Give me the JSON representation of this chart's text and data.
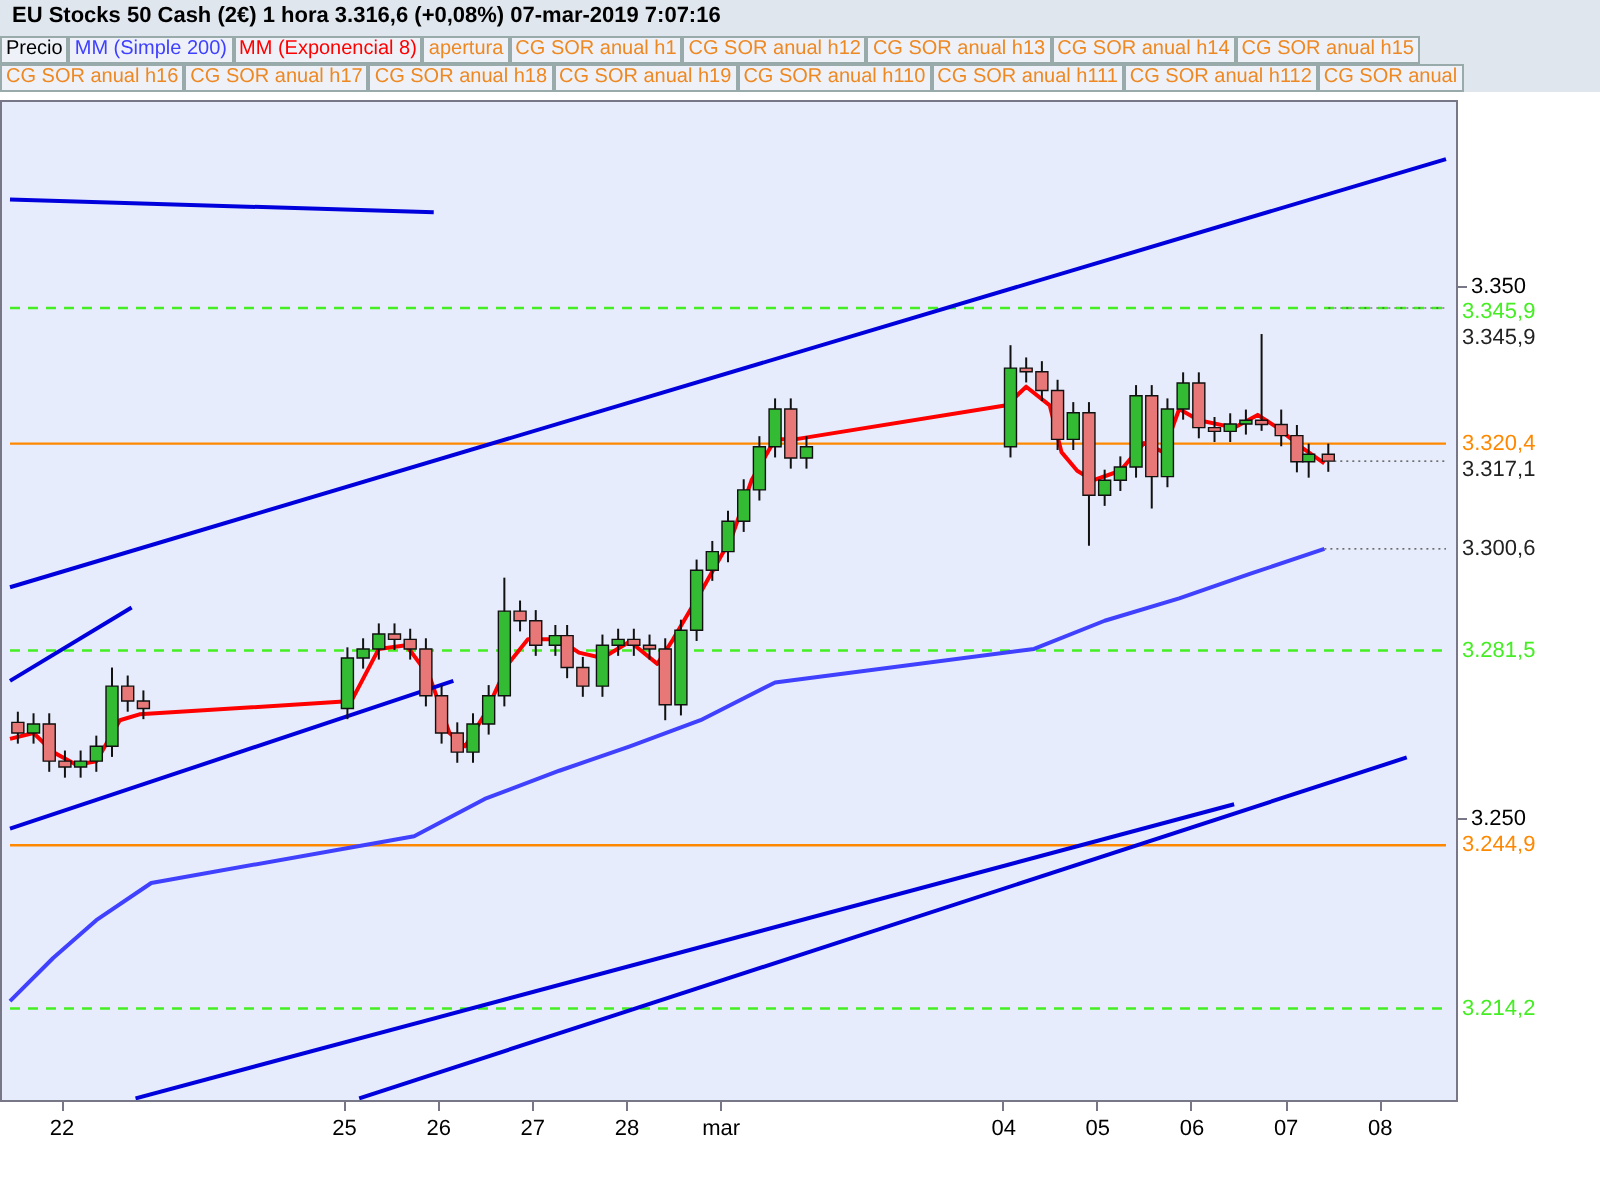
{
  "chart_data": {
    "type": "candlestick",
    "title": "EU Stocks 50 Cash (2€)   1 hora   3.316,6 (+0,08%)   07-mar-2019 7:07:16",
    "legend": "top left",
    "grid": false,
    "marker": "none",
    "xlim": [
      "2019-02-21T11:00",
      "2019-03-08T17:00"
    ],
    "xticks": [
      {
        "value": "2019-02-22",
        "label": "22"
      },
      {
        "value": "2019-02-25",
        "label": "25"
      },
      {
        "value": "2019-02-26",
        "label": "26"
      },
      {
        "value": "2019-02-27",
        "label": "27"
      },
      {
        "value": "2019-02-28",
        "label": "28"
      },
      {
        "value": "2019-03-01",
        "label": "mar"
      },
      {
        "value": "2019-03-04",
        "label": "04"
      },
      {
        "value": "2019-03-05",
        "label": "05"
      },
      {
        "value": "2019-03-06",
        "label": "06"
      },
      {
        "value": "2019-03-07",
        "label": "07"
      },
      {
        "value": "2019-03-08",
        "label": "08"
      }
    ],
    "ylim": [
      3197,
      3385
    ],
    "yticks": [
      {
        "value": 3350,
        "label": "3.350"
      },
      {
        "value": 3250,
        "label": "3.250"
      }
    ],
    "series": [
      {
        "name": "Precio",
        "x": [
          "2019-02-21T13:00",
          "2019-02-21T17:00",
          "2019-02-21T21:00",
          "2019-02-22T01:00",
          "2019-02-22T05:00",
          "2019-02-22T09:00",
          "2019-02-22T13:00",
          "2019-02-22T17:00",
          "2019-02-22T21:00",
          "2019-02-25T01:00",
          "2019-02-25T05:00",
          "2019-02-25T09:00",
          "2019-02-25T13:00",
          "2019-02-25T17:00",
          "2019-02-25T21:00",
          "2019-02-26T01:00",
          "2019-02-26T05:00",
          "2019-02-26T09:00",
          "2019-02-26T13:00",
          "2019-02-26T17:00",
          "2019-02-26T21:00",
          "2019-02-27T01:00",
          "2019-02-27T06:00",
          "2019-02-27T09:00",
          "2019-02-27T13:00",
          "2019-02-27T18:00",
          "2019-02-27T22:00",
          "2019-02-28T02:00",
          "2019-02-28T06:00",
          "2019-02-28T10:00",
          "2019-02-28T14:00",
          "2019-02-28T18:00",
          "2019-02-28T22:00",
          "2019-03-01T02:00",
          "2019-03-01T06:00",
          "2019-03-01T10:00",
          "2019-03-01T14:00",
          "2019-03-01T18:00",
          "2019-03-01T22:00",
          "2019-03-04T02:00",
          "2019-03-04T06:00",
          "2019-03-04T10:00",
          "2019-03-04T14:00",
          "2019-03-04T18:00",
          "2019-03-04T22:00",
          "2019-03-05T02:00",
          "2019-03-05T06:00",
          "2019-03-05T10:00",
          "2019-03-05T14:00",
          "2019-03-05T18:00",
          "2019-03-05T22:00",
          "2019-03-06T02:00",
          "2019-03-06T06:00",
          "2019-03-06T10:00",
          "2019-03-06T14:00",
          "2019-03-06T18:00",
          "2019-03-06T23:00",
          "2019-03-07T03:00",
          "2019-03-07T06:00",
          "2019-03-07T11:00"
        ],
        "ohlc": [
          [
            3268.0,
            3270.0,
            3264.0,
            3266.0
          ],
          [
            3266.0,
            3269.7,
            3264.0,
            3267.7
          ],
          [
            3267.7,
            3269.7,
            3258.7,
            3260.7
          ],
          [
            3260.7,
            3262.7,
            3257.6,
            3259.6
          ],
          [
            3259.6,
            3262.7,
            3257.6,
            3260.7
          ],
          [
            3260.7,
            3265.5,
            3258.7,
            3263.5
          ],
          [
            3263.5,
            3278.3,
            3261.5,
            3274.8
          ],
          [
            3274.8,
            3276.8,
            3270.0,
            3272.0
          ],
          [
            3272.0,
            3274.0,
            3268.6,
            3270.6
          ],
          [
            3270.6,
            3282.1,
            3268.6,
            3280.1
          ],
          [
            3280.1,
            3283.8,
            3278.1,
            3281.8
          ],
          [
            3281.8,
            3286.6,
            3279.8,
            3284.6
          ],
          [
            3284.6,
            3286.6,
            3281.6,
            3283.6
          ],
          [
            3283.6,
            3285.6,
            3279.8,
            3281.8
          ],
          [
            3281.8,
            3283.8,
            3271.0,
            3273.0
          ],
          [
            3273.0,
            3275.0,
            3264.0,
            3266.0
          ],
          [
            3266.0,
            3268.0,
            3260.4,
            3262.4
          ],
          [
            3262.4,
            3269.7,
            3260.4,
            3267.7
          ],
          [
            3267.7,
            3275.0,
            3265.7,
            3273.0
          ],
          [
            3273.0,
            3295.2,
            3271.0,
            3288.9
          ],
          [
            3288.9,
            3290.9,
            3285.1,
            3287.1
          ],
          [
            3287.1,
            3289.1,
            3280.5,
            3282.5
          ],
          [
            3282.5,
            3286.3,
            3280.5,
            3284.3
          ],
          [
            3284.3,
            3286.3,
            3276.3,
            3278.3
          ],
          [
            3278.3,
            3280.3,
            3272.8,
            3274.8
          ],
          [
            3274.8,
            3284.5,
            3272.8,
            3282.5
          ],
          [
            3282.5,
            3285.6,
            3280.5,
            3283.6
          ],
          [
            3283.6,
            3285.6,
            3280.5,
            3282.5
          ],
          [
            3282.5,
            3284.5,
            3279.8,
            3281.8
          ],
          [
            3281.8,
            3283.8,
            3268.4,
            3271.3
          ],
          [
            3271.3,
            3287.3,
            3269.3,
            3285.3
          ],
          [
            3285.3,
            3298.6,
            3283.3,
            3296.6
          ],
          [
            3296.6,
            3302.1,
            3294.6,
            3300.1
          ],
          [
            3300.1,
            3307.8,
            3298.1,
            3305.8
          ],
          [
            3305.8,
            3313.7,
            3303.8,
            3311.7
          ],
          [
            3311.7,
            3321.8,
            3309.7,
            3319.8
          ],
          [
            3319.8,
            3328.9,
            3317.8,
            3326.9
          ],
          [
            3326.9,
            3328.9,
            3315.7,
            3317.7
          ],
          [
            3317.7,
            3321.8,
            3315.7,
            3319.8
          ],
          [
            3319.8,
            3338.9,
            3317.8,
            3334.6
          ],
          [
            3334.6,
            3336.6,
            3331.9,
            3333.9
          ],
          [
            3333.9,
            3335.9,
            3328.4,
            3330.4
          ],
          [
            3330.4,
            3332.4,
            3319.2,
            3321.2
          ],
          [
            3321.2,
            3328.2,
            3319.2,
            3326.2
          ],
          [
            3326.2,
            3328.2,
            3301.2,
            3310.7
          ],
          [
            3310.7,
            3315.5,
            3308.7,
            3313.5
          ],
          [
            3313.5,
            3318.0,
            3311.5,
            3316.0
          ],
          [
            3316.0,
            3331.4,
            3314.0,
            3329.4
          ],
          [
            3329.4,
            3331.4,
            3308.2,
            3314.2
          ],
          [
            3314.2,
            3328.9,
            3312.2,
            3326.9
          ],
          [
            3326.9,
            3333.8,
            3324.9,
            3331.8
          ],
          [
            3331.8,
            3333.8,
            3321.4,
            3323.4
          ],
          [
            3323.4,
            3325.4,
            3320.7,
            3322.7
          ],
          [
            3322.7,
            3326.1,
            3320.7,
            3324.1
          ],
          [
            3324.1,
            3326.8,
            3322.1,
            3324.8
          ],
          [
            3324.8,
            3341.0,
            3322.8,
            3324.0
          ],
          [
            3324.0,
            3326.8,
            3319.9,
            3321.9
          ],
          [
            3321.9,
            3323.9,
            3315.0,
            3317.0
          ],
          [
            3317.0,
            3320.4,
            3314.0,
            3318.4
          ],
          [
            3318.4,
            3320.4,
            3315.1,
            3317.1
          ]
        ],
        "colors": [
          "#e87878",
          "#33bb33",
          "#e87878",
          "#e87878",
          "#33bb33",
          "#33bb33",
          "#33bb33",
          "#e87878",
          "#e87878",
          "#33bb33",
          "#33bb33",
          "#33bb33",
          "#e87878",
          "#e87878",
          "#e87878",
          "#e87878",
          "#e87878",
          "#33bb33",
          "#33bb33",
          "#33bb33",
          "#e87878",
          "#e87878",
          "#33bb33",
          "#e87878",
          "#e87878",
          "#33bb33",
          "#33bb33",
          "#e87878",
          "#e87878",
          "#e87878",
          "#33bb33",
          "#33bb33",
          "#33bb33",
          "#33bb33",
          "#33bb33",
          "#33bb33",
          "#33bb33",
          "#e87878",
          "#33bb33",
          "#33bb33",
          "#e87878",
          "#e87878",
          "#e87878",
          "#33bb33",
          "#e87878",
          "#33bb33",
          "#33bb33",
          "#33bb33",
          "#e87878",
          "#33bb33",
          "#33bb33",
          "#e87878",
          "#e87878",
          "#33bb33",
          "#33bb33",
          "#e87878",
          "#e87878",
          "#e87878",
          "#33bb33",
          "#e87878"
        ]
      },
      {
        "name": "MM (Simple 200)",
        "type": "line",
        "color": "#4040ff",
        "x": [
          "2019-02-21T11:00",
          "2019-02-21T22:00",
          "2019-02-22T09:00",
          "2019-02-22T23:00",
          "2019-02-25T18:00",
          "2019-02-26T12:00",
          "2019-02-27T07:00",
          "2019-02-28T01:00",
          "2019-02-28T19:00",
          "2019-03-01T14:00",
          "2019-03-04T08:00",
          "2019-03-05T02:00",
          "2019-03-05T21:00",
          "2019-03-06T15:00",
          "2019-03-07T10:00"
        ],
        "values": [
          3215.6,
          3223.7,
          3230.8,
          3237.8,
          3246.6,
          3253.6,
          3258.9,
          3263.5,
          3268.4,
          3275.5,
          3281.8,
          3287.1,
          3291.3,
          3295.9,
          3300.6
        ]
      },
      {
        "name": "MM (Exponencial 8)",
        "type": "line",
        "color": "#ff0000",
        "x": [
          "2019-02-21T11:00",
          "2019-02-21T17:00",
          "2019-02-21T22:00",
          "2019-02-22T04:00",
          "2019-02-22T09:00",
          "2019-02-22T15:00",
          "2019-02-22T20:00",
          "2019-02-25T02:00",
          "2019-02-25T09:00",
          "2019-02-25T16:00",
          "2019-02-25T22:00",
          "2019-02-26T03:00",
          "2019-02-26T07:00",
          "2019-02-26T12:00",
          "2019-02-26T18:00",
          "2019-02-26T23:00",
          "2019-02-27T07:00",
          "2019-02-27T12:00",
          "2019-02-27T18:00",
          "2019-02-28T01:00",
          "2019-02-28T08:00",
          "2019-02-28T12:00",
          "2019-02-28T19:00",
          "2019-03-01T03:00",
          "2019-03-01T08:00",
          "2019-03-01T14:00",
          "2019-03-01T19:00",
          "2019-03-04T01:00",
          "2019-03-04T06:00",
          "2019-03-04T12:00",
          "2019-03-04T15:00",
          "2019-03-04T19:00",
          "2019-03-04T23:00",
          "2019-03-05T06:00",
          "2019-03-05T12:00",
          "2019-03-05T17:00",
          "2019-03-05T21:00",
          "2019-03-06T02:00",
          "2019-03-06T11:00",
          "2019-03-06T17:00",
          "2019-03-06T22:00",
          "2019-03-07T04:00",
          "2019-03-07T10:00"
        ],
        "values": [
          3264.9,
          3266.0,
          3262.4,
          3260.0,
          3260.7,
          3268.4,
          3269.5,
          3272.0,
          3281.8,
          3282.5,
          3276.5,
          3266.0,
          3263.5,
          3269.5,
          3279.0,
          3283.6,
          3283.6,
          3281.1,
          3280.1,
          3283.2,
          3279.0,
          3283.6,
          3292.4,
          3302.9,
          3313.5,
          3321.2,
          3321.2,
          3327.6,
          3331.1,
          3327.6,
          3318.8,
          3315.3,
          3313.5,
          3315.3,
          3320.5,
          3318.8,
          3326.9,
          3324.8,
          3323.4,
          3325.8,
          3323.4,
          3319.8,
          3316.7
        ]
      },
      {
        "type": "line",
        "color": "#0000dd",
        "x": [
          "2019-02-21T11:00",
          "2019-02-25T23:00"
        ],
        "values": [
          3366.3,
          3363.9
        ]
      },
      {
        "type": "line",
        "color": "#0000dd",
        "x": [
          "2019-02-21T11:00",
          "2019-03-08T17:00"
        ],
        "values": [
          3293.4,
          3373.9
        ]
      },
      {
        "type": "line",
        "color": "#0000dd",
        "x": [
          "2019-02-21T11:00",
          "2019-02-22T18:00"
        ],
        "values": [
          3275.8,
          3289.6
        ]
      },
      {
        "type": "line",
        "color": "#0000dd",
        "x": [
          "2019-02-21T11:00",
          "2019-02-26T04:00"
        ],
        "values": [
          3248.0,
          3275.8
        ]
      },
      {
        "type": "line",
        "color": "#0000dd",
        "x": [
          "2019-02-22T19:00",
          "2019-03-06T11:00"
        ],
        "values": [
          3197.3,
          3252.6
        ]
      },
      {
        "type": "line",
        "color": "#0000dd",
        "x": [
          "2019-02-25T04:00",
          "2019-03-08T07:00"
        ],
        "values": [
          3197.3,
          3261.4
        ]
      }
    ],
    "ref_lines": [
      {
        "axis": "y",
        "value": 3345.9,
        "label": "3.345,9",
        "color": "#44ee22",
        "line_style": "dashed"
      },
      {
        "axis": "y",
        "value": 3320.4,
        "label": "3.320,4",
        "color": "#ff8800",
        "line_style": "solid"
      },
      {
        "axis": "y",
        "value": 3281.5,
        "label": "3.281,5",
        "color": "#44ee22",
        "line_style": "dashed"
      },
      {
        "axis": "y",
        "value": 3244.9,
        "label": "3.244,9",
        "color": "#ff8800",
        "line_style": "solid"
      },
      {
        "axis": "y",
        "value": 3214.2,
        "label": "3.214,2",
        "color": "#44ee22",
        "line_style": "dashed"
      }
    ],
    "annotations": [
      "apertura",
      "CG SOR anual h1",
      "CG SOR anual h12",
      "CG SOR anual h13",
      "CG SOR anual h14",
      "CG SOR anual h15",
      "CG SOR anual h16",
      "CG SOR anual h17",
      "CG SOR anual h18",
      "CG SOR anual h19",
      "CG SOR anual h110",
      "CG SOR anual h111",
      "CG SOR anual h112",
      "CG SOR anual",
      {
        "text": "3.345,9",
        "x": "2019-03-07T11:00",
        "y": 3345.9
      },
      {
        "text": "3.317,1",
        "x": "2019-03-07T11:00",
        "y": 3317.1
      },
      {
        "text": "3.300,6",
        "x": "2019-03-07T10:00",
        "y": 3300.6
      }
    ]
  }
}
